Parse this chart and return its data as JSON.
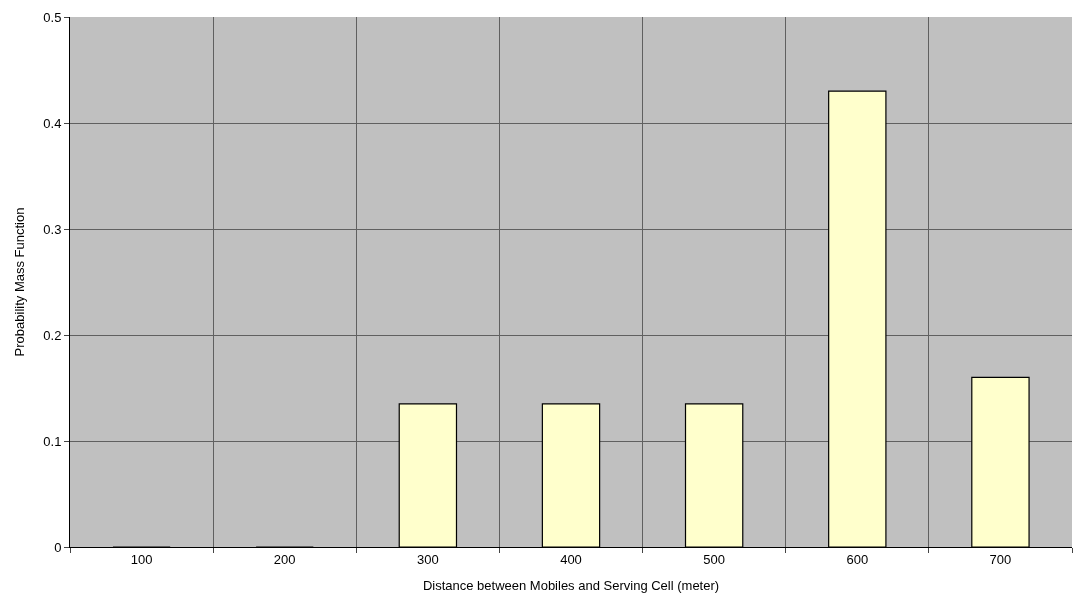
{
  "chart_data": {
    "type": "bar",
    "xlabel": "Distance between Mobiles and Serving Cell (meter)",
    "ylabel": "Probability Mass Function",
    "categories": [
      "100",
      "200",
      "300",
      "400",
      "500",
      "600",
      "700"
    ],
    "values": [
      0,
      0,
      0.135,
      0.135,
      0.135,
      0.43,
      0.16
    ],
    "color": "#ffffcc",
    "ylim": [
      0,
      0.5
    ],
    "yticks": [
      0,
      0.1,
      0.2,
      0.3,
      0.4,
      0.5
    ],
    "grid": true
  }
}
